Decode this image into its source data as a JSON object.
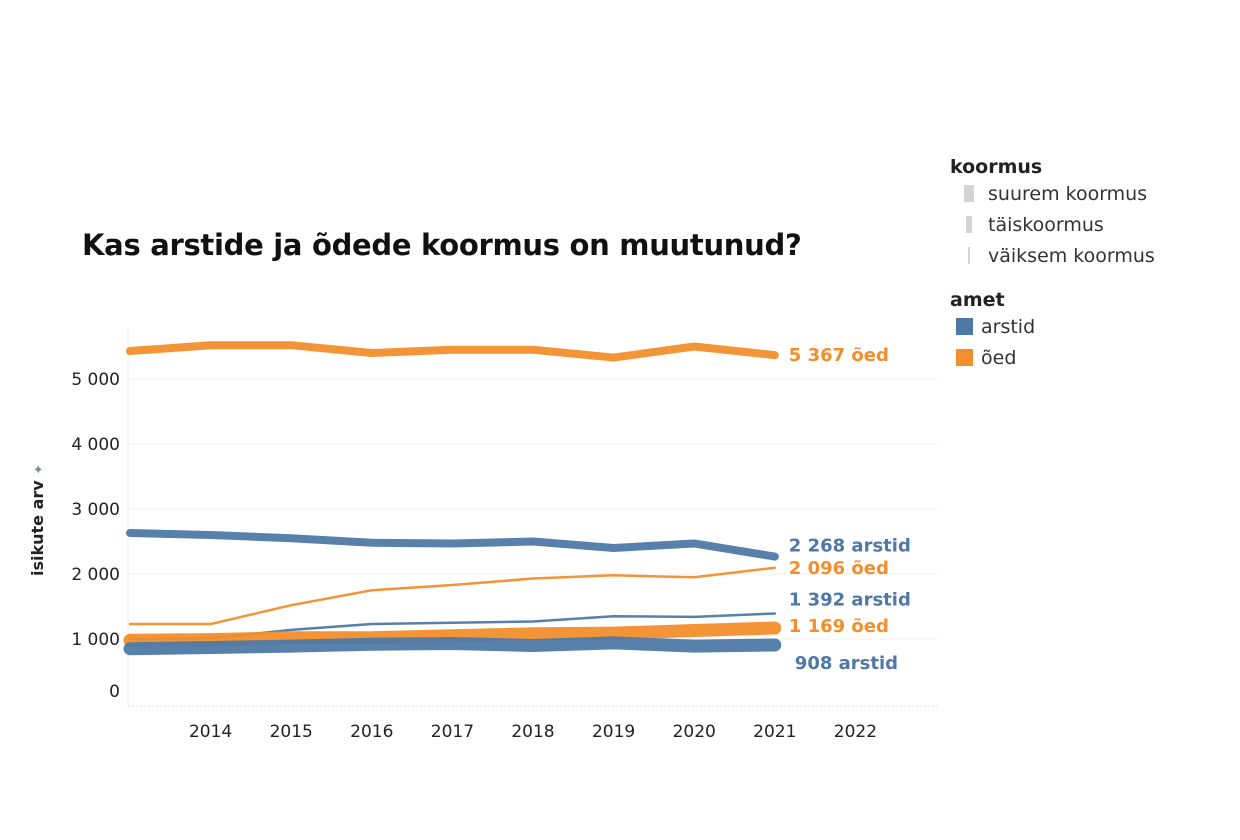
{
  "chart_data": {
    "type": "line",
    "title": "Kas arstide ja õdede koormus on muutunud?",
    "ylabel": "isikute arv",
    "xlabel": "",
    "x": [
      2013,
      2014,
      2015,
      2016,
      2017,
      2018,
      2019,
      2020,
      2021
    ],
    "x_ticks": [
      "2014",
      "2015",
      "2016",
      "2017",
      "2018",
      "2019",
      "2020",
      "2021",
      "2022"
    ],
    "xlim": [
      2013,
      2023
    ],
    "y_ticks": [
      "0",
      "1 000",
      "2 000",
      "3 000",
      "4 000",
      "5 000"
    ],
    "ylim": [
      -200,
      5800
    ],
    "grid": true,
    "legend": {
      "placement": "right",
      "koormus": {
        "title": "koormus",
        "items": [
          "suurem koormus",
          "täiskoormus",
          "väiksem koormus"
        ]
      },
      "amet": {
        "title": "amet",
        "items": [
          {
            "label": "arstid",
            "color": "#4e79a7"
          },
          {
            "label": "õed",
            "color": "#f28e2b"
          }
        ]
      }
    },
    "series": [
      {
        "amet": "õed",
        "koormus": "täiskoormus",
        "color": "#f28e2b",
        "values": [
          5430,
          5520,
          5520,
          5400,
          5450,
          5450,
          5330,
          5500,
          5367
        ],
        "label": "5 367 õed"
      },
      {
        "amet": "arstid",
        "koormus": "täiskoormus",
        "color": "#4e79a7",
        "values": [
          2630,
          2600,
          2550,
          2480,
          2470,
          2500,
          2400,
          2470,
          2268
        ],
        "label": "2 268 arstid"
      },
      {
        "amet": "õed",
        "koormus": "väiksem koormus",
        "color": "#f28e2b",
        "values": [
          1230,
          1230,
          1520,
          1750,
          1830,
          1930,
          1980,
          1950,
          2096
        ],
        "label": "2 096 õed"
      },
      {
        "amet": "arstid",
        "koormus": "väiksem koormus",
        "color": "#4e79a7",
        "values": [
          1000,
          1010,
          1140,
          1230,
          1250,
          1270,
          1350,
          1340,
          1392
        ],
        "label": "1 392 arstid"
      },
      {
        "amet": "õed",
        "koormus": "suurem koormus",
        "color": "#f28e2b",
        "values": [
          980,
          990,
          1020,
          1020,
          1050,
          1080,
          1090,
          1130,
          1169
        ],
        "label": "1 169 õed"
      },
      {
        "amet": "arstid",
        "koormus": "suurem koormus",
        "color": "#4e79a7",
        "values": [
          850,
          870,
          890,
          920,
          930,
          900,
          940,
          890,
          908
        ],
        "label": "908 arstid"
      }
    ]
  }
}
